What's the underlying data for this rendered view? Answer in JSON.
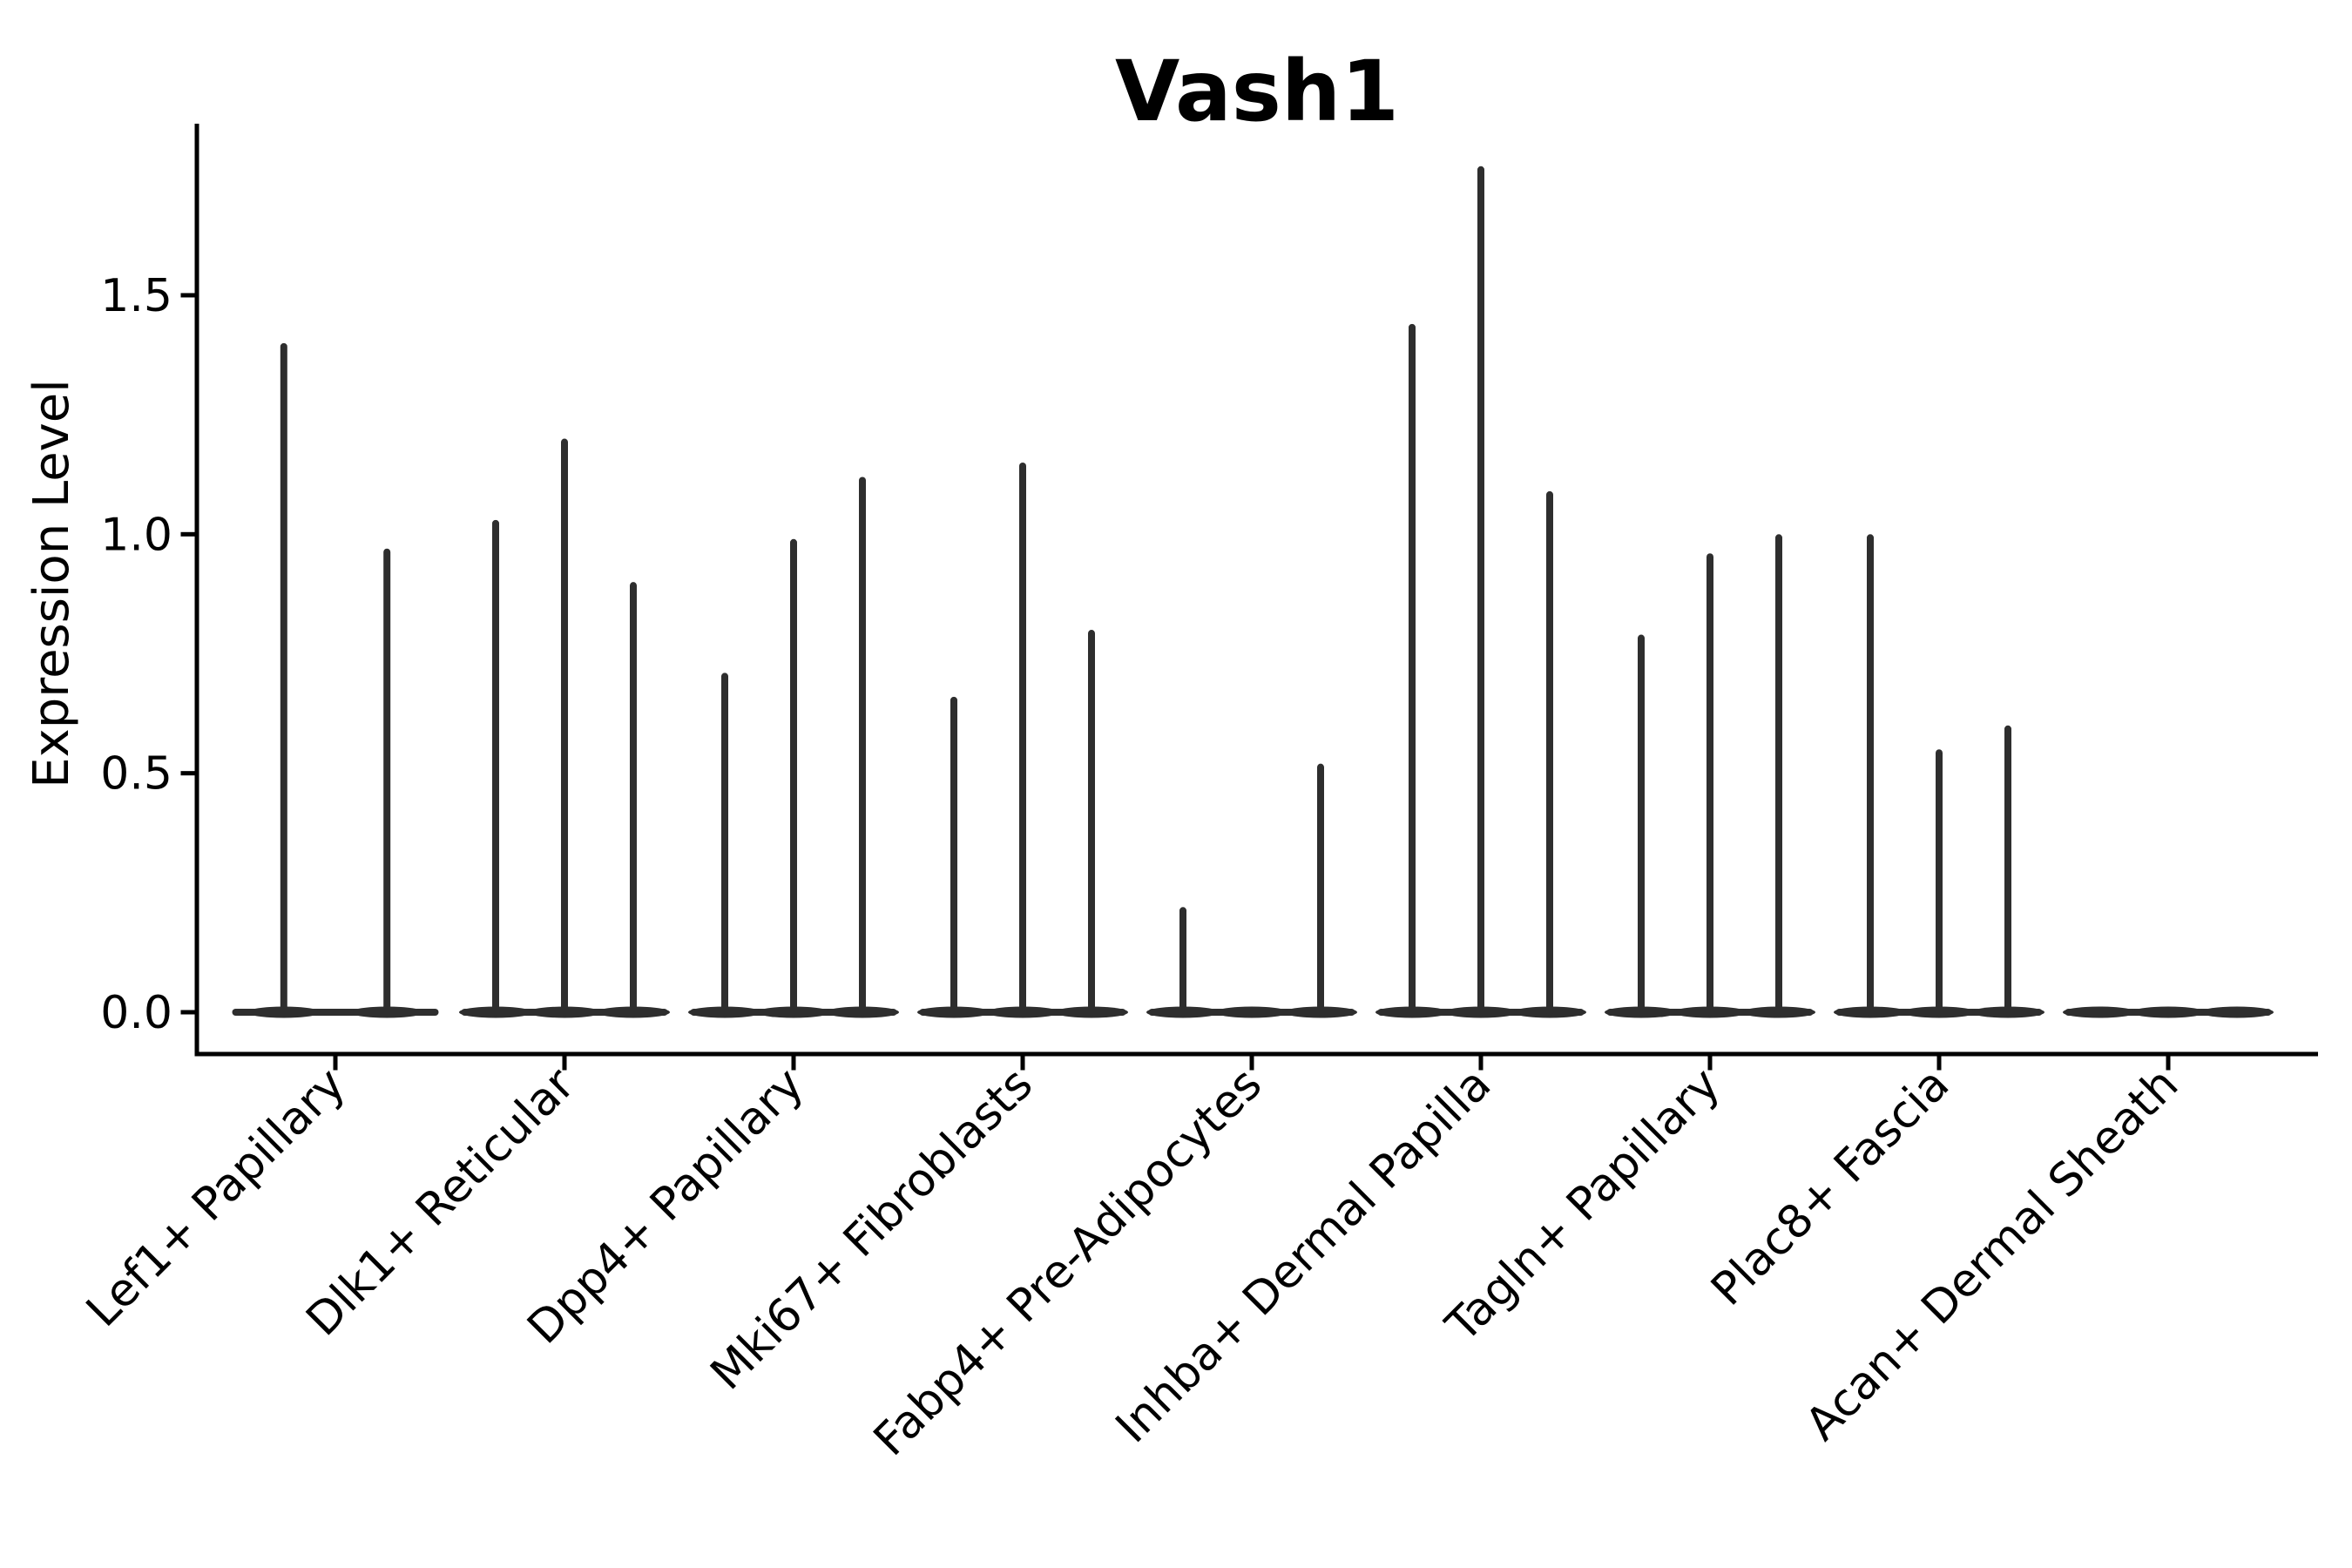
{
  "chart_data": {
    "type": "violin",
    "title": "Vash1",
    "ylabel": "Expression Level",
    "xlabel": "",
    "legend_position": "none",
    "grid": false,
    "background_color": "#ffffff",
    "axis_color": "#000000",
    "violin_color": "#2e2e2e",
    "ylim": [
      -0.09,
      1.95
    ],
    "ytick_labels": [
      "0.0",
      "0.5",
      "1.0",
      "1.5"
    ],
    "ytick_values": [
      0.0,
      0.5,
      1.0,
      1.5
    ],
    "categories": [
      "Lef1+ Papillary",
      "Dlk1+ Reticular",
      "Dpp4+ Papillary",
      "Mki67+ Fibroblasts",
      "Fabp4+ Pre-Adipocytes",
      "Inhba+ Dermal Papilla",
      "Tagln+ Papillary",
      "Plac8+ Fascia",
      "Acan+ Dermal Sheath"
    ],
    "groups": [
      {
        "label": "Lef1+ Papillary",
        "violin_peak_values": [
          1.4,
          0.97
        ]
      },
      {
        "label": "Dlk1+ Reticular",
        "violin_peak_values": [
          1.03,
          1.2,
          0.9
        ]
      },
      {
        "label": "Dpp4+ Papillary",
        "violin_peak_values": [
          0.71,
          0.99,
          1.12
        ]
      },
      {
        "label": "Mki67+ Fibroblasts",
        "violin_peak_values": [
          0.66,
          1.15,
          0.8
        ]
      },
      {
        "label": "Fabp4+ Pre-Adipocytes",
        "violin_peak_values": [
          0.22,
          0.0,
          0.52
        ]
      },
      {
        "label": "Inhba+ Dermal Papilla",
        "violin_peak_values": [
          1.44,
          1.77,
          1.09
        ]
      },
      {
        "label": "Tagln+ Papillary",
        "violin_peak_values": [
          0.79,
          0.96,
          1.0
        ]
      },
      {
        "label": "Plac8+ Fascia",
        "violin_peak_values": [
          1.0,
          0.55,
          0.6
        ]
      },
      {
        "label": "Acan+ Dermal Sheath",
        "violin_peak_values": [
          0.0,
          0.0,
          0.0
        ]
      }
    ]
  }
}
